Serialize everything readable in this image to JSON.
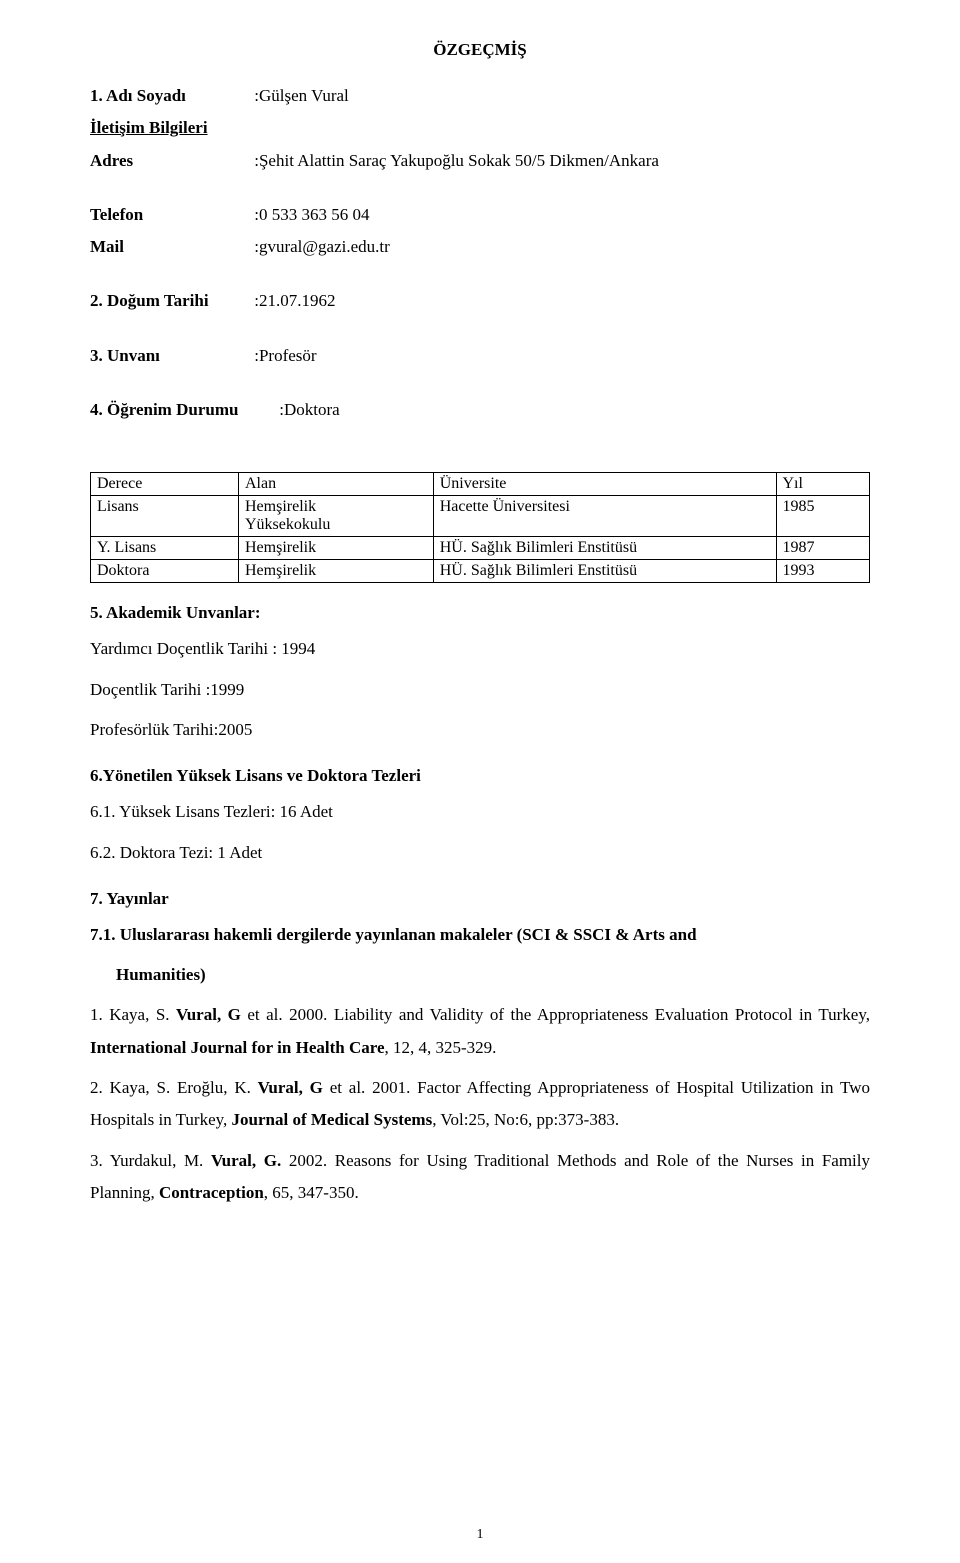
{
  "title": "ÖZGEÇMİŞ",
  "fields": {
    "name_label": "1. Adı Soyadı",
    "name_value": ":Gülşen Vural",
    "contact_label": "İletişim Bilgileri",
    "address_label": "Adres",
    "address_value": ":Şehit Alattin Saraç Yakupoğlu Sokak 50/5 Dikmen/Ankara",
    "phone_label": "Telefon",
    "phone_value": ":0 533 363 56 04",
    "mail_label": "Mail",
    "mail_value": ":gvural@gazi.edu.tr",
    "birth_label": "2. Doğum Tarihi",
    "birth_value": ":21.07.1962",
    "title_label": "3. Unvanı",
    "title_value": ":Profesör",
    "edu_label": "4. Öğrenim Durumu",
    "edu_value": ":Doktora"
  },
  "edu_table": {
    "headers": [
      "Derece",
      "Alan",
      "Üniversite",
      "Yıl"
    ],
    "rows": [
      [
        "Lisans",
        "Hemşirelik\nYüksekokulu",
        "Hacette Üniversitesi",
        "1985"
      ],
      [
        "Y. Lisans",
        "Hemşirelik",
        "HÜ. Sağlık Bilimleri Enstitüsü",
        "1987"
      ],
      [
        "Doktora",
        "Hemşirelik",
        "HÜ. Sağlık Bilimleri Enstitüsü",
        "1993"
      ]
    ],
    "col_widths": [
      "19%",
      "25%",
      "44%",
      "12%"
    ]
  },
  "academic": {
    "heading": "5. Akademik Unvanlar:",
    "lines": [
      "Yardımcı Doçentlik Tarihi : 1994",
      "Doçentlik Tarihi :1999",
      "Profesörlük Tarihi:2005"
    ]
  },
  "theses": {
    "heading": "6.Yönetilen Yüksek Lisans ve Doktora Tezleri",
    "items": [
      "6.1.  Yüksek Lisans Tezleri:  16 Adet",
      "6.2.  Doktora Tezi:  1 Adet"
    ]
  },
  "pubs": {
    "heading7": "7.   Yayınlar",
    "heading71a": "7.1.  Uluslararası hakemli dergilerde yayınlanan makaleler (SCI & SSCI & Arts and",
    "heading71b": "Humanities)",
    "p1_prefix": "1. Kaya, S. ",
    "p1_bold": "Vural, G",
    "p1_mid": " et al. 2000. Liability and Validity of the Appropriateness Evaluation Protocol in Turkey, ",
    "p1_journal": "International Journal for in Health Care",
    "p1_suffix": ", 12, 4, 325-329.",
    "p2_prefix": "2. Kaya, S. Eroğlu, K. ",
    "p2_bold": "Vural, G",
    "p2_mid": " et al. 2001. Factor Affecting Appropriateness of Hospital Utilization in Two Hospitals in Turkey, ",
    "p2_journal": "Journal of Medical Systems",
    "p2_suffix": ", Vol:25, No:6, pp:373-383.",
    "p3_prefix": "3. Yurdakul, M. ",
    "p3_bold": "Vural, G.",
    "p3_mid": " 2002. Reasons for Using Traditional Methods and Role of the Nurses in Family Planning, ",
    "p3_journal": "Contraception",
    "p3_suffix": ", 65, 347-350."
  },
  "page_number": "1",
  "colors": {
    "text": "#000000",
    "background": "#ffffff",
    "border": "#000000"
  },
  "typography": {
    "base_fontsize": 17,
    "table_fontsize": 16,
    "font_family": "Times New Roman"
  }
}
